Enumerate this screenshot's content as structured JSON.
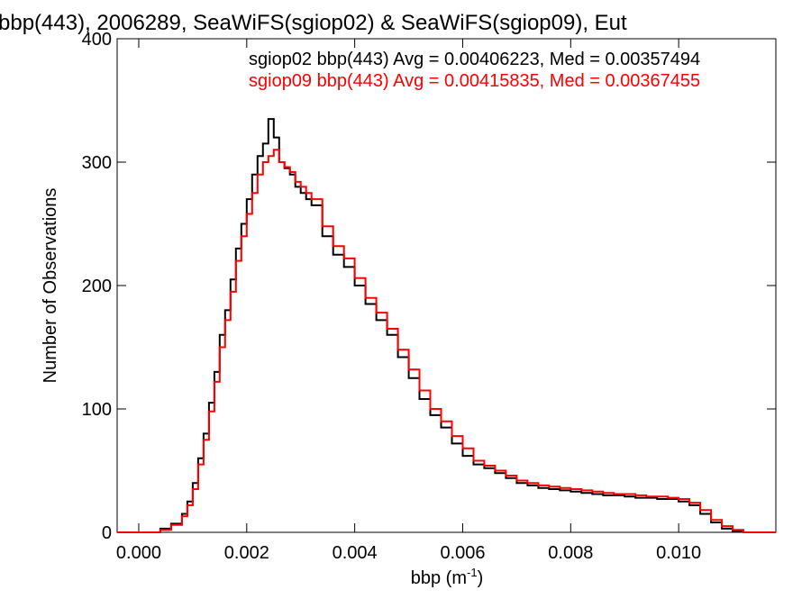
{
  "chart_data": {
    "type": "line",
    "title": "bbp(443), 2006289, SeaWiFS(sgiop02) & SeaWiFS(sgiop09), Eut",
    "xlabel": "bbp (m",
    "xlabel_superscript": "-1",
    "xlabel_suffix": ")",
    "ylabel": "Number of Observations",
    "xlim": [
      -0.0004,
      0.0118
    ],
    "ylim": [
      0,
      400
    ],
    "x_ticks": [
      0.0,
      0.002,
      0.004,
      0.006,
      0.008,
      0.01
    ],
    "x_tick_labels": [
      "0.000",
      "0.002",
      "0.004",
      "0.006",
      "0.008",
      "0.010"
    ],
    "y_ticks": [
      0,
      100,
      200,
      300,
      400
    ],
    "y_tick_labels": [
      "0",
      "100",
      "200",
      "300",
      "400"
    ],
    "grid": false,
    "legend_placement": "top-right",
    "series": [
      {
        "name": "sgiop02 bbp(443) Avg = 0.00406223, Med = 0.00357494",
        "color": "#000000",
        "x": [
          -0.0004,
          0.0,
          0.0004,
          0.0006,
          0.0008,
          0.0009,
          0.001,
          0.0011,
          0.0012,
          0.0013,
          0.0014,
          0.0015,
          0.0016,
          0.0017,
          0.0018,
          0.0019,
          0.002,
          0.0021,
          0.0022,
          0.0023,
          0.0024,
          0.0025,
          0.0026,
          0.0027,
          0.0028,
          0.0029,
          0.003,
          0.0031,
          0.0032,
          0.0034,
          0.0036,
          0.0038,
          0.004,
          0.0042,
          0.0044,
          0.0046,
          0.0048,
          0.005,
          0.0052,
          0.0054,
          0.0056,
          0.0058,
          0.006,
          0.0062,
          0.0064,
          0.0066,
          0.0068,
          0.007,
          0.0072,
          0.0074,
          0.0076,
          0.0078,
          0.008,
          0.0082,
          0.0084,
          0.0086,
          0.0088,
          0.009,
          0.0092,
          0.0094,
          0.0096,
          0.0098,
          0.01,
          0.0102,
          0.0104,
          0.0106,
          0.0108,
          0.011,
          0.0112,
          0.0118
        ],
        "y": [
          0,
          0,
          3,
          7,
          15,
          25,
          40,
          60,
          80,
          105,
          130,
          160,
          180,
          205,
          230,
          250,
          270,
          290,
          305,
          315,
          335,
          320,
          300,
          295,
          290,
          280,
          275,
          270,
          265,
          240,
          225,
          215,
          200,
          185,
          172,
          160,
          142,
          125,
          108,
          95,
          85,
          72,
          62,
          55,
          52,
          48,
          44,
          40,
          38,
          36,
          35,
          34,
          33,
          32,
          31,
          30,
          30,
          29,
          28,
          28,
          27,
          27,
          25,
          22,
          15,
          8,
          3,
          1,
          0,
          0
        ]
      },
      {
        "name": "sgiop09 bbp(443) Avg = 0.00415835, Med = 0.00367455",
        "color": "#ff0000",
        "x": [
          -0.0004,
          0.0,
          0.0004,
          0.0006,
          0.0008,
          0.0009,
          0.001,
          0.0011,
          0.0012,
          0.0013,
          0.0014,
          0.0015,
          0.0016,
          0.0017,
          0.0018,
          0.0019,
          0.002,
          0.0021,
          0.0022,
          0.0023,
          0.0024,
          0.0025,
          0.0026,
          0.0027,
          0.0028,
          0.0029,
          0.003,
          0.0031,
          0.0032,
          0.0034,
          0.0036,
          0.0038,
          0.004,
          0.0042,
          0.0044,
          0.0046,
          0.0048,
          0.005,
          0.0052,
          0.0054,
          0.0056,
          0.0058,
          0.006,
          0.0062,
          0.0064,
          0.0066,
          0.0068,
          0.007,
          0.0072,
          0.0074,
          0.0076,
          0.0078,
          0.008,
          0.0082,
          0.0084,
          0.0086,
          0.0088,
          0.009,
          0.0092,
          0.0094,
          0.0096,
          0.0098,
          0.01,
          0.0102,
          0.0104,
          0.0106,
          0.0108,
          0.011,
          0.0112,
          0.0118
        ],
        "y": [
          0,
          0,
          2,
          6,
          13,
          22,
          35,
          55,
          75,
          98,
          122,
          150,
          172,
          195,
          220,
          240,
          258,
          275,
          290,
          300,
          305,
          310,
          300,
          296,
          292,
          284,
          280,
          275,
          270,
          248,
          232,
          222,
          206,
          190,
          178,
          165,
          148,
          132,
          115,
          100,
          90,
          78,
          68,
          58,
          54,
          50,
          46,
          42,
          40,
          38,
          37,
          36,
          35,
          34,
          33,
          32,
          31,
          31,
          30,
          29,
          29,
          28,
          27,
          24,
          18,
          10,
          5,
          2,
          0,
          0
        ]
      }
    ]
  }
}
